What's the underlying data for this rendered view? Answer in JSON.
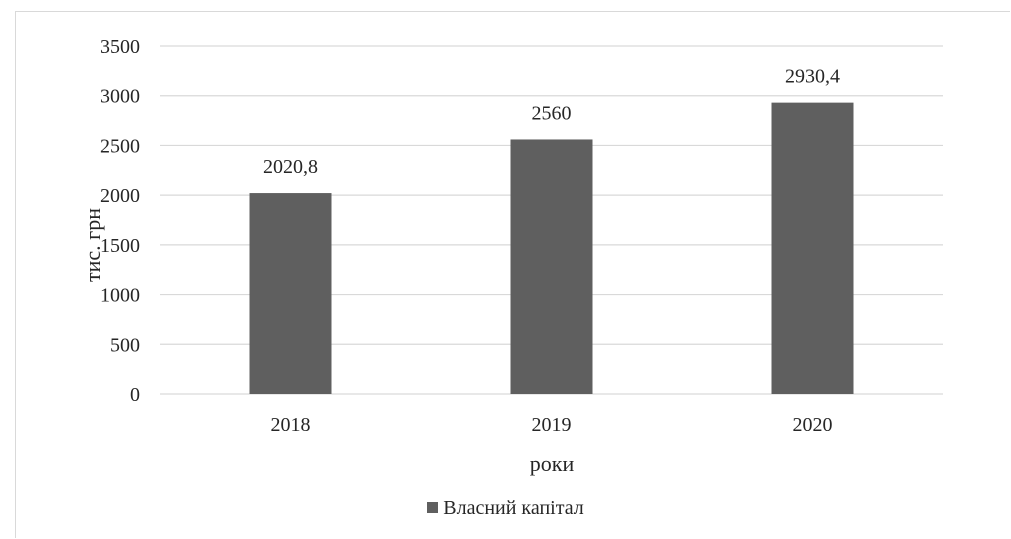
{
  "chart_data": {
    "type": "bar",
    "title": "",
    "categories": [
      "2018",
      "2019",
      "2020"
    ],
    "series": [
      {
        "name": "Власний капітал",
        "values": [
          2020.8,
          2560,
          2930.4
        ],
        "color": "#5f5f5f"
      }
    ],
    "data_labels": [
      "2020,8",
      "2560",
      "2930,4"
    ],
    "xlabel": "роки",
    "ylabel": "тис. грн",
    "ylim": [
      0,
      3500
    ],
    "yticks": [
      0,
      500,
      1000,
      1500,
      2000,
      2500,
      3000,
      3500
    ],
    "grid": true,
    "gridline_color": "#d9d9d9",
    "legend_position": "bottom"
  }
}
